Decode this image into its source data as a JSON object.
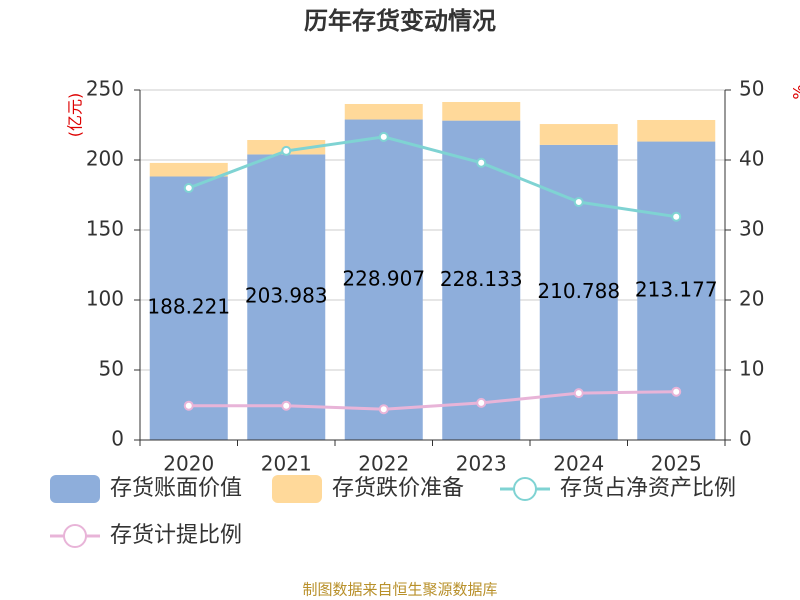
{
  "chart_data": {
    "type": "bar",
    "title": "历年存货变动情况",
    "y_label": "(亿元)",
    "y2_label": "%",
    "categories": [
      "2020",
      "2021",
      "2022",
      "2023",
      "2024",
      "2025"
    ],
    "series": [
      {
        "name": "存货账面价值",
        "type": "bar",
        "color": "#8eaedb",
        "values": [
          188.221,
          203.983,
          228.907,
          228.133,
          210.788,
          213.177
        ]
      },
      {
        "name": "存货跌价准备",
        "type": "bar",
        "color": "#ffd99a",
        "values": [
          9.7,
          10.3,
          11.1,
          13.3,
          14.9,
          15.4
        ]
      },
      {
        "name": "存货占净资产比例",
        "type": "line",
        "axis": "y2",
        "color": "#7fd3d3",
        "values": [
          36,
          41.3,
          43.3,
          39.6,
          34,
          31.9
        ]
      },
      {
        "name": "存货计提比例",
        "type": "line",
        "axis": "y2",
        "color": "#e8b4d8",
        "values": [
          4.9,
          4.9,
          4.4,
          5.3,
          6.7,
          6.9
        ]
      }
    ],
    "ylim": [
      0,
      250
    ],
    "yticks": [
      0,
      50,
      100,
      150,
      200,
      250
    ],
    "y2lim": [
      0,
      50
    ],
    "y2ticks": [
      0,
      10,
      20,
      30,
      40,
      50
    ],
    "grid": true,
    "source": "制图数据来自恒生聚源数据库"
  }
}
